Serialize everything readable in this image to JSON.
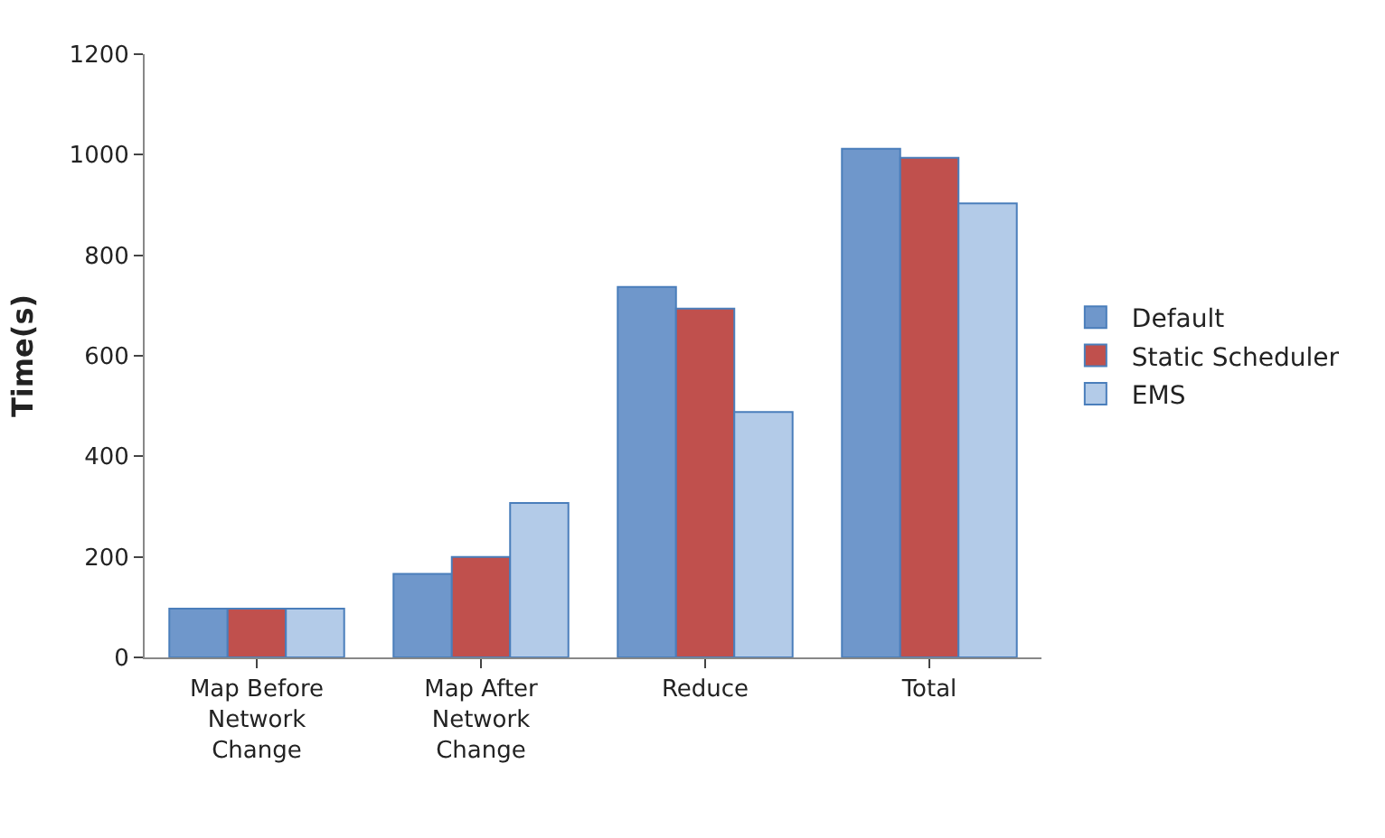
{
  "chart_data": {
    "type": "bar",
    "ylabel": "Time(s)",
    "categories": [
      "Map Before Network Change",
      "Map After Network Change",
      "Reduce",
      "Total"
    ],
    "series": [
      {
        "name": "Default",
        "color": "#6f97cb",
        "values": [
          97,
          166,
          737,
          1012
        ]
      },
      {
        "name": "Static Scheduler",
        "color": "#c0504d",
        "values": [
          97,
          200,
          694,
          994
        ]
      },
      {
        "name": "EMS",
        "color": "#b3cbe8",
        "values": [
          97,
          307,
          488,
          903
        ]
      }
    ],
    "ylim": [
      0,
      1200
    ],
    "yticks": [
      0,
      200,
      400,
      600,
      800,
      1000,
      1200
    ],
    "grid": false,
    "legend": "right"
  }
}
